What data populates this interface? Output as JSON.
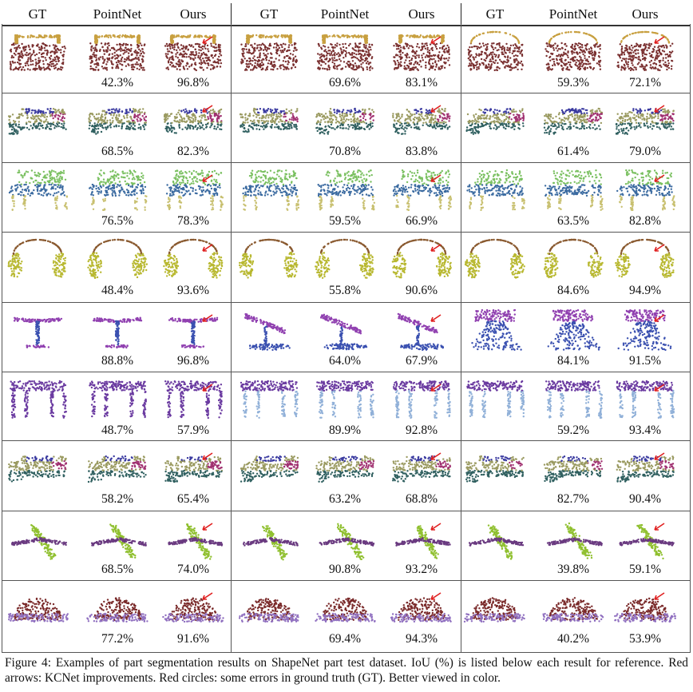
{
  "headers": [
    "GT",
    "PointNet",
    "Ours",
    "GT",
    "PointNet",
    "Ours",
    "GT",
    "PointNet",
    "Ours"
  ],
  "rows": [
    {
      "category": "bag",
      "colors": [
        "#7a3030",
        "#c8a040"
      ],
      "iou": [
        [
          "42.3%",
          "96.8%"
        ],
        [
          "69.6%",
          "83.1%"
        ],
        [
          "59.3%",
          "72.1%"
        ]
      ]
    },
    {
      "category": "car",
      "colors": [
        "#9a9a60",
        "#3a3aa0",
        "#306060",
        "#a03070"
      ],
      "iou": [
        [
          "68.5%",
          "82.3%"
        ],
        [
          "70.8%",
          "83.8%"
        ],
        [
          "61.4%",
          "79.0%"
        ]
      ]
    },
    {
      "category": "chair",
      "colors": [
        "#3a6aa0",
        "#7ac060",
        "#c8c070",
        "#999999"
      ],
      "iou": [
        [
          "76.5%",
          "78.3%"
        ],
        [
          "59.5%",
          "66.9%"
        ],
        [
          "63.5%",
          "82.8%"
        ]
      ]
    },
    {
      "category": "earphone",
      "colors": [
        "#8a5a30",
        "#b8b830",
        "#509040"
      ],
      "iou": [
        [
          "48.4%",
          "93.6%"
        ],
        [
          "55.8%",
          "90.6%"
        ],
        [
          "84.6%",
          "94.9%"
        ]
      ]
    },
    {
      "category": "lamp",
      "colors": [
        "#9040b0",
        "#3a50b0"
      ],
      "iou": [
        [
          "88.8%",
          "96.8%"
        ],
        [
          "64.0%",
          "67.9%"
        ],
        [
          "84.1%",
          "91.5%"
        ]
      ]
    },
    {
      "category": "table",
      "colors": [
        "#6a3aa0",
        "#90b0d8",
        "#5060a0"
      ],
      "iou": [
        [
          "48.7%",
          "57.9%"
        ],
        [
          "89.9%",
          "92.8%"
        ],
        [
          "59.2%",
          "93.4%"
        ]
      ]
    },
    {
      "category": "car",
      "colors": [
        "#9a9a60",
        "#3a3aa0",
        "#306060",
        "#a03070"
      ],
      "iou": [
        [
          "58.2%",
          "65.4%"
        ],
        [
          "63.2%",
          "68.8%"
        ],
        [
          "82.7%",
          "90.4%"
        ]
      ]
    },
    {
      "category": "airplane",
      "colors": [
        "#90c030",
        "#6a3a80"
      ],
      "iou": [
        [
          "68.5%",
          "74.0%"
        ],
        [
          "90.8%",
          "93.2%"
        ],
        [
          "39.8%",
          "59.1%"
        ]
      ]
    },
    {
      "category": "cap",
      "colors": [
        "#7a2a2a",
        "#9070c0"
      ],
      "iou": [
        [
          "77.2%",
          "91.6%"
        ],
        [
          "69.4%",
          "94.3%"
        ],
        [
          "40.2%",
          "53.9%"
        ]
      ]
    }
  ],
  "caption": "Figure 4:  Examples of part segmentation results on ShapeNet part test dataset.  IoU (%) is listed below each result for reference. Red arrows: KCNet improvements. Red circles: some errors in ground truth (GT). Better viewed in color.",
  "accent": "#e02020"
}
